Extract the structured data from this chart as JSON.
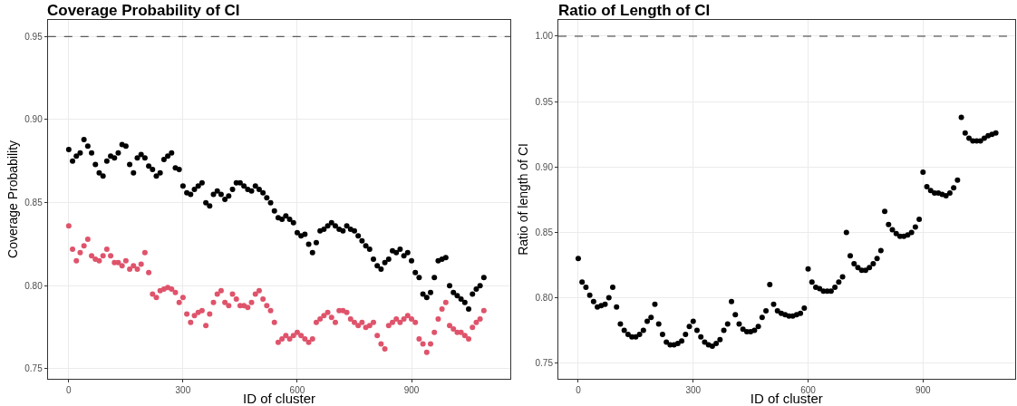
{
  "chart_data": [
    {
      "type": "scatter",
      "title": "Coverage Probability of CI",
      "xlabel": "ID of cluster",
      "ylabel": "Coverage Probability",
      "x": [
        0,
        10,
        20,
        30,
        40,
        50,
        60,
        70,
        80,
        90,
        100,
        110,
        120,
        130,
        140,
        150,
        160,
        170,
        180,
        190,
        200,
        210,
        220,
        230,
        240,
        250,
        260,
        270,
        280,
        290,
        300,
        310,
        320,
        330,
        340,
        350,
        360,
        370,
        380,
        390,
        400,
        410,
        420,
        430,
        440,
        450,
        460,
        470,
        480,
        490,
        500,
        510,
        520,
        530,
        540,
        550,
        560,
        570,
        580,
        590,
        600,
        610,
        620,
        630,
        640,
        650,
        660,
        670,
        680,
        690,
        700,
        710,
        720,
        730,
        740,
        750,
        760,
        770,
        780,
        790,
        800,
        810,
        820,
        830,
        840,
        850,
        860,
        870,
        880,
        890,
        900,
        910,
        920,
        930,
        940,
        950,
        960,
        970,
        980,
        990,
        1000,
        1010,
        1020,
        1030,
        1040,
        1050,
        1060,
        1070,
        1080,
        1090
      ],
      "xlim": [
        -55,
        1160
      ],
      "xticks": [
        0,
        300,
        600,
        900
      ],
      "ylim": [
        0.744,
        0.96
      ],
      "yticks": [
        0.75,
        {
          "value": 0.8,
          "label": "0.80"
        },
        0.85,
        {
          "value": 0.9,
          "label": "0.90"
        },
        0.95
      ],
      "grid": true,
      "marker": "circle",
      "series": [
        {
          "color": "#000000",
          "values": [
            0.882,
            0.875,
            0.878,
            0.88,
            0.888,
            0.884,
            0.88,
            0.873,
            0.868,
            0.866,
            0.875,
            0.878,
            0.877,
            0.88,
            0.885,
            0.884,
            0.873,
            0.868,
            0.877,
            0.879,
            0.877,
            0.872,
            0.87,
            0.866,
            0.868,
            0.876,
            0.878,
            0.88,
            0.871,
            0.87,
            0.86,
            0.856,
            0.855,
            0.858,
            0.86,
            0.862,
            0.85,
            0.848,
            0.855,
            0.857,
            0.855,
            0.852,
            0.854,
            0.858,
            0.862,
            0.862,
            0.86,
            0.858,
            0.857,
            0.86,
            0.858,
            0.856,
            0.853,
            0.85,
            0.845,
            0.841,
            0.84,
            0.842,
            0.84,
            0.838,
            0.832,
            0.83,
            0.831,
            0.825,
            0.82,
            0.826,
            0.833,
            0.834,
            0.836,
            0.838,
            0.836,
            0.834,
            0.833,
            0.836,
            0.834,
            0.833,
            0.83,
            0.827,
            0.824,
            0.822,
            0.816,
            0.812,
            0.81,
            0.814,
            0.816,
            0.821,
            0.82,
            0.822,
            0.818,
            0.82,
            0.815,
            0.808,
            0.805,
            0.795,
            0.793,
            0.796,
            0.805,
            0.815,
            0.816,
            0.817,
            0.8,
            0.796,
            0.794,
            0.792,
            0.79,
            0.786,
            0.795,
            0.798,
            0.8,
            0.805
          ]
        },
        {
          "color": "#df536b",
          "values": [
            0.836,
            0.822,
            0.815,
            0.82,
            0.824,
            0.828,
            0.818,
            0.816,
            0.815,
            0.818,
            0.822,
            0.818,
            0.814,
            0.814,
            0.812,
            0.815,
            0.81,
            0.812,
            0.81,
            0.813,
            0.82,
            0.808,
            0.795,
            0.793,
            0.797,
            0.798,
            0.799,
            0.798,
            0.796,
            0.79,
            0.793,
            0.783,
            0.778,
            0.782,
            0.784,
            0.785,
            0.776,
            0.783,
            0.79,
            0.795,
            0.797,
            0.79,
            0.788,
            0.795,
            0.792,
            0.788,
            0.788,
            0.787,
            0.79,
            0.795,
            0.797,
            0.792,
            0.788,
            0.785,
            0.778,
            0.766,
            0.768,
            0.77,
            0.768,
            0.77,
            0.772,
            0.77,
            0.768,
            0.766,
            0.768,
            0.778,
            0.78,
            0.782,
            0.784,
            0.781,
            0.778,
            0.785,
            0.785,
            0.784,
            0.78,
            0.778,
            0.776,
            0.778,
            0.775,
            0.776,
            0.778,
            0.77,
            0.765,
            0.762,
            0.776,
            0.778,
            0.78,
            0.778,
            0.78,
            0.782,
            0.78,
            0.778,
            0.768,
            0.765,
            0.76,
            0.765,
            0.772,
            0.78,
            0.786,
            0.79,
            0.776,
            0.774,
            0.772,
            0.772,
            0.77,
            0.768,
            0.775,
            0.778,
            0.78,
            0.785
          ]
        }
      ],
      "ref_lines": [
        {
          "axis": "y",
          "value": 0.95,
          "line_style": "dashed",
          "color": "#333333"
        }
      ]
    },
    {
      "type": "scatter",
      "title": "Ratio of Length of CI",
      "xlabel": "ID of cluster",
      "ylabel": "Ratio of length of CI",
      "x": [
        0,
        10,
        20,
        30,
        40,
        50,
        60,
        70,
        80,
        90,
        100,
        110,
        120,
        130,
        140,
        150,
        160,
        170,
        180,
        190,
        200,
        210,
        220,
        230,
        240,
        250,
        260,
        270,
        280,
        290,
        300,
        310,
        320,
        330,
        340,
        350,
        360,
        370,
        380,
        390,
        400,
        410,
        420,
        430,
        440,
        450,
        460,
        470,
        480,
        490,
        500,
        510,
        520,
        530,
        540,
        550,
        560,
        570,
        580,
        590,
        600,
        610,
        620,
        630,
        640,
        650,
        660,
        670,
        680,
        690,
        700,
        710,
        720,
        730,
        740,
        750,
        760,
        770,
        780,
        790,
        800,
        810,
        820,
        830,
        840,
        850,
        860,
        870,
        880,
        890,
        900,
        910,
        920,
        930,
        940,
        950,
        960,
        970,
        980,
        990,
        1000,
        1010,
        1020,
        1030,
        1040,
        1050,
        1060,
        1070,
        1080,
        1090
      ],
      "xlim": [
        -52,
        1140
      ],
      "xticks": [
        0,
        300,
        600,
        900
      ],
      "ylim": [
        0.738,
        1.0125
      ],
      "yticks": [
        0.75,
        {
          "value": 0.8,
          "label": "0.80"
        },
        0.85,
        {
          "value": 0.9,
          "label": "0.90"
        },
        0.95,
        {
          "value": 1.0,
          "label": "1.00"
        }
      ],
      "grid": true,
      "marker": "circle",
      "series": [
        {
          "color": "#000000",
          "values": [
            0.83,
            0.812,
            0.808,
            0.802,
            0.797,
            0.793,
            0.794,
            0.795,
            0.8,
            0.808,
            0.793,
            0.78,
            0.775,
            0.772,
            0.77,
            0.77,
            0.772,
            0.775,
            0.782,
            0.785,
            0.795,
            0.78,
            0.772,
            0.766,
            0.764,
            0.764,
            0.765,
            0.767,
            0.772,
            0.778,
            0.782,
            0.775,
            0.77,
            0.766,
            0.764,
            0.763,
            0.765,
            0.768,
            0.775,
            0.78,
            0.797,
            0.787,
            0.78,
            0.776,
            0.774,
            0.774,
            0.775,
            0.778,
            0.785,
            0.79,
            0.81,
            0.795,
            0.79,
            0.788,
            0.787,
            0.786,
            0.786,
            0.787,
            0.788,
            0.792,
            0.822,
            0.812,
            0.808,
            0.807,
            0.805,
            0.805,
            0.805,
            0.808,
            0.812,
            0.816,
            0.85,
            0.832,
            0.826,
            0.823,
            0.821,
            0.821,
            0.823,
            0.826,
            0.83,
            0.836,
            0.866,
            0.856,
            0.852,
            0.849,
            0.847,
            0.847,
            0.848,
            0.85,
            0.854,
            0.86,
            0.896,
            0.885,
            0.882,
            0.88,
            0.88,
            0.879,
            0.878,
            0.88,
            0.884,
            0.89,
            0.938,
            0.926,
            0.922,
            0.92,
            0.92,
            0.92,
            0.922,
            0.924,
            0.925,
            0.926
          ]
        }
      ],
      "ref_lines": [
        {
          "axis": "y",
          "value": 1.0,
          "line_style": "dashed",
          "color": "#333333"
        }
      ]
    }
  ]
}
